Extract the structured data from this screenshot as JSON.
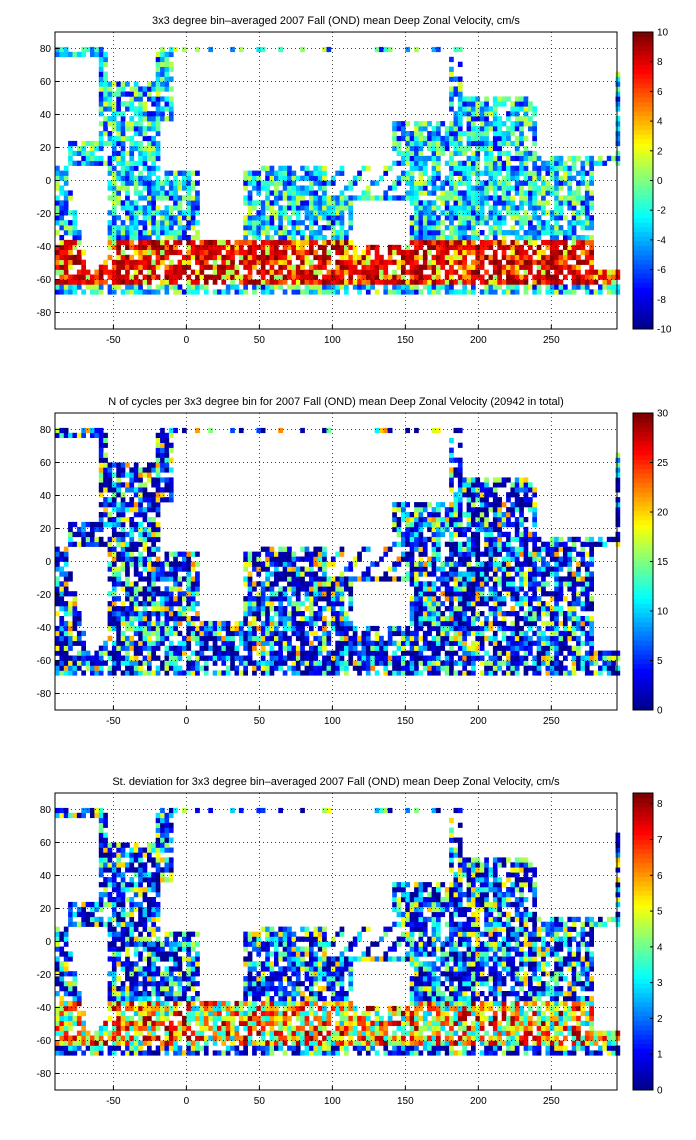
{
  "colormap": [
    "#00008f",
    "#0000ff",
    "#007fff",
    "#00ffff",
    "#7fff7f",
    "#ffff00",
    "#ff7f00",
    "#ff0000",
    "#7f0000"
  ],
  "chart_data": [
    {
      "type": "heatmap",
      "title": "3x3 degree bin–averaged 2007 Fall (OND) mean Deep Zonal Velocity, cm/s",
      "xlim": [
        -90,
        295
      ],
      "ylim": [
        -90,
        90
      ],
      "xticks": [
        "-50",
        "0",
        "50",
        "100",
        "150",
        "200",
        "250"
      ],
      "yticks": [
        "80",
        "60",
        "40",
        "20",
        "0",
        "-20",
        "-40",
        "-60",
        "-80"
      ],
      "grid": true,
      "bin_size_deg": 3,
      "colorbar": {
        "min": -10,
        "max": 10,
        "ticks": [
          "10",
          "8",
          "6",
          "4",
          "2",
          "0",
          "-2",
          "-4",
          "-6",
          "-8",
          "-10"
        ]
      }
    },
    {
      "type": "heatmap",
      "title": "N of cycles per 3x3 degree bin for 2007 Fall (OND) mean Deep Zonal Velocity (20942 in total)",
      "xlim": [
        -90,
        295
      ],
      "ylim": [
        -90,
        90
      ],
      "xticks": [
        "-50",
        "0",
        "50",
        "100",
        "150",
        "200",
        "250"
      ],
      "yticks": [
        "80",
        "60",
        "40",
        "20",
        "0",
        "-20",
        "-40",
        "-60",
        "-80"
      ],
      "grid": true,
      "bin_size_deg": 3,
      "colorbar": {
        "min": 0,
        "max": 30,
        "ticks": [
          "30",
          "25",
          "20",
          "15",
          "10",
          "5",
          "0"
        ]
      }
    },
    {
      "type": "heatmap",
      "title": "St. deviation for 3x3 degree bin–averaged 2007 Fall (OND) mean Deep Zonal Velocity, cm/s",
      "xlim": [
        -90,
        295
      ],
      "ylim": [
        -90,
        90
      ],
      "xticks": [
        "-50",
        "0",
        "50",
        "100",
        "150",
        "200",
        "250"
      ],
      "yticks": [
        "80",
        "60",
        "40",
        "20",
        "0",
        "-20",
        "-40",
        "-60",
        "-80"
      ],
      "grid": true,
      "bin_size_deg": 3,
      "colorbar": {
        "min": 0,
        "max": 8.3,
        "ticks": [
          "8",
          "7",
          "6",
          "5",
          "4",
          "3",
          "2",
          "1",
          "0"
        ]
      }
    }
  ]
}
